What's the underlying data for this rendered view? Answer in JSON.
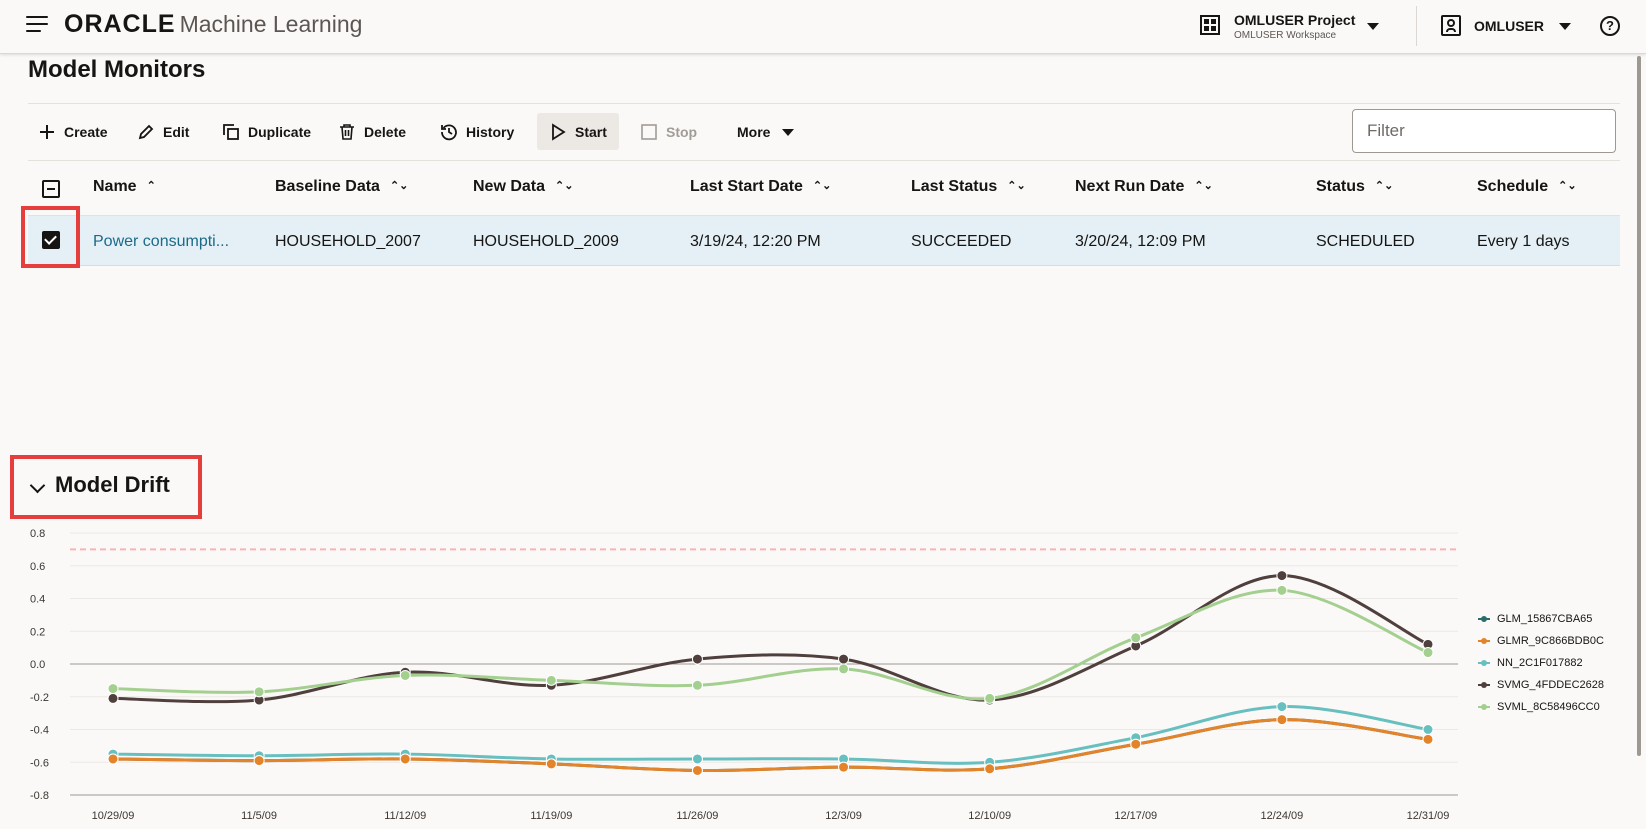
{
  "header": {
    "brand": "ORACLE",
    "product": "Machine Learning",
    "project_title": "OMLUSER Project",
    "project_workspace": "OMLUSER Workspace",
    "user": "OMLUSER",
    "help_glyph": "?"
  },
  "page": {
    "title": "Model Monitors"
  },
  "toolbar": {
    "create": "Create",
    "edit": "Edit",
    "duplicate": "Duplicate",
    "delete": "Delete",
    "history": "History",
    "start": "Start",
    "stop": "Stop",
    "more": "More",
    "filter_placeholder": "Filter"
  },
  "table": {
    "columns": [
      "Name",
      "Baseline Data",
      "New Data",
      "Last Start Date",
      "Last Status",
      "Next Run Date",
      "Status",
      "Schedule"
    ],
    "rows": [
      {
        "name": "Power consumpti...",
        "baseline": "HOUSEHOLD_2007",
        "new_data": "HOUSEHOLD_2009",
        "last_start": "3/19/24, 12:20 PM",
        "last_status": "SUCCEEDED",
        "next_run": "3/20/24, 12:09 PM",
        "status": "SCHEDULED",
        "schedule": "Every 1 days",
        "selected": true
      }
    ]
  },
  "drift": {
    "title": "Model Drift"
  },
  "chart_data": {
    "type": "line",
    "categories": [
      "10/29/09",
      "11/5/09",
      "11/12/09",
      "11/19/09",
      "11/26/09",
      "12/3/09",
      "12/10/09",
      "12/17/09",
      "12/24/09",
      "12/31/09"
    ],
    "ylim": [
      -0.8,
      0.8
    ],
    "yticks": [
      0.8,
      0.6,
      0.4,
      0.2,
      0.0,
      -0.2,
      -0.4,
      -0.6,
      -0.8
    ],
    "ytick_labels": [
      "0.8",
      "0.6",
      "0.4",
      "0.2",
      "0.0",
      "-0.2",
      "-0.4",
      "-0.6",
      "-0.8"
    ],
    "threshold": 0.7,
    "threshold_color": "#f5b5b5",
    "grid": true,
    "legend_position": "right",
    "series": [
      {
        "name": "GLM_15867CBA65",
        "color": "#2a6b6b",
        "values": [
          -0.58,
          -0.59,
          -0.58,
          -0.61,
          -0.65,
          -0.63,
          -0.64,
          -0.49,
          -0.34,
          -0.46
        ]
      },
      {
        "name": "GLMR_9C866BDB0C",
        "color": "#e3842b",
        "values": [
          -0.58,
          -0.59,
          -0.58,
          -0.61,
          -0.65,
          -0.63,
          -0.64,
          -0.49,
          -0.34,
          -0.46
        ]
      },
      {
        "name": "NN_2C1F017882",
        "color": "#68bfbf",
        "values": [
          -0.55,
          -0.56,
          -0.55,
          -0.58,
          -0.58,
          -0.58,
          -0.6,
          -0.45,
          -0.26,
          -0.4
        ]
      },
      {
        "name": "SVMG_4FDDEC2628",
        "color": "#4f403d",
        "values": [
          -0.21,
          -0.22,
          -0.05,
          -0.13,
          0.03,
          0.03,
          -0.22,
          0.11,
          0.54,
          0.12
        ]
      },
      {
        "name": "SVML_8C58496CC0",
        "color": "#a3cf8f",
        "values": [
          -0.15,
          -0.17,
          -0.07,
          -0.1,
          -0.13,
          -0.03,
          -0.21,
          0.16,
          0.45,
          0.07
        ]
      }
    ]
  }
}
